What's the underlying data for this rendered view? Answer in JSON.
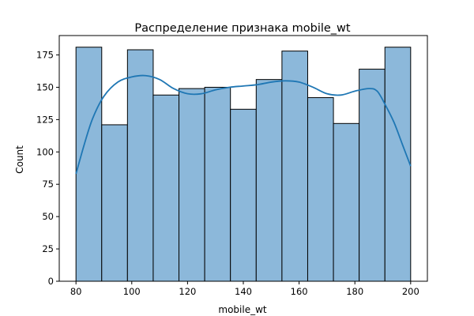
{
  "chart_data": {
    "type": "histogram",
    "title": "Распределение признака mobile_wt",
    "xlabel": "mobile_wt",
    "ylabel": "Count",
    "xlim": [
      80,
      200
    ],
    "ylim": [
      0,
      190
    ],
    "bins": 13,
    "bin_edges": [
      80,
      89.23,
      98.46,
      107.69,
      116.92,
      126.15,
      135.38,
      144.62,
      153.85,
      163.08,
      172.31,
      181.54,
      190.77,
      200
    ],
    "counts": [
      181,
      121,
      179,
      144,
      149,
      150,
      133,
      156,
      178,
      142,
      122,
      164,
      181
    ],
    "x_ticks": [
      80,
      100,
      120,
      140,
      160,
      180,
      200
    ],
    "y_ticks": [
      0,
      25,
      50,
      75,
      100,
      125,
      150,
      175
    ],
    "kde": {
      "x": [
        80,
        83,
        86,
        90,
        95,
        100,
        105,
        110,
        115,
        120,
        125,
        130,
        135,
        140,
        145,
        150,
        155,
        160,
        165,
        170,
        175,
        180,
        185,
        188,
        191,
        194,
        197,
        200
      ],
      "y": [
        83,
        106,
        126,
        143,
        154,
        158,
        159,
        156,
        149,
        145,
        145,
        148,
        150,
        151,
        152,
        154,
        155,
        154,
        150,
        145,
        144,
        147,
        149,
        147,
        136,
        123,
        106,
        89
      ]
    },
    "grid": false,
    "legend": "none",
    "colors": {
      "bar_fill": "#8cb8da",
      "bar_edge": "#000000",
      "kde_line": "#1f77b4"
    }
  }
}
